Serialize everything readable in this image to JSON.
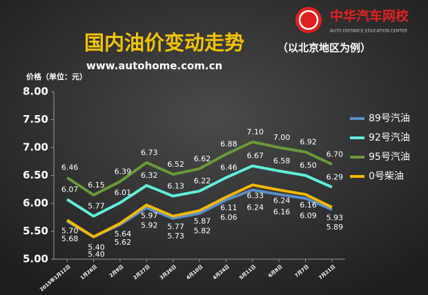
{
  "logo": {
    "name": "中华汽车网校",
    "tagline": "AUTO DISTANCE EDUCATION CENTER"
  },
  "chart_data": {
    "type": "line",
    "title": "国内油价变动走势",
    "subtitle": "（以北京地区为例）",
    "source": "www.autohome.com.cn",
    "y_label": "价格（单位：元）",
    "categories": [
      "2015年1月12日",
      "1月26日",
      "2月9日",
      "2月27日",
      "3月26日",
      "4月10日",
      "4月24日",
      "5月11日",
      "6月8日",
      "7月7日",
      "7月21日"
    ],
    "ylim": [
      5,
      8
    ],
    "yticks": [
      {
        "value": 5,
        "label": "5.00"
      },
      {
        "value": 5.5,
        "label": "5.50"
      },
      {
        "value": 6,
        "label": "6.00"
      },
      {
        "value": 6.5,
        "label": "6.50"
      },
      {
        "value": 7,
        "label": "7.00"
      },
      {
        "value": 7.5,
        "label": "7.50"
      },
      {
        "value": 8,
        "label": "8.00"
      }
    ],
    "grid": false,
    "legend": "right",
    "series": [
      {
        "name": "89号汽油",
        "color": "#5b8fc9",
        "values": [
          5.68,
          5.4,
          5.62,
          5.92,
          5.73,
          5.82,
          6.06,
          6.24,
          6.16,
          6.09,
          5.89
        ],
        "value_labels": [
          "5.68",
          "5.40",
          "5.62",
          "5.92",
          "5.73",
          "5.82",
          "6.06",
          "6.24",
          "6.16",
          "6.09",
          "5.89"
        ]
      },
      {
        "name": "92号汽油",
        "color": "#5ff0d8",
        "values": [
          6.07,
          5.77,
          6.01,
          6.32,
          6.13,
          6.22,
          6.46,
          6.67,
          6.58,
          6.5,
          6.29
        ],
        "value_labels": [
          "6.07",
          "5.77",
          "6.01",
          "6.32",
          "6.13",
          "6.22",
          "6.46",
          "6.67",
          "6.58",
          "6.50",
          "6.29"
        ]
      },
      {
        "name": "95号汽油",
        "color": "#6a9a3a",
        "values": [
          6.46,
          6.15,
          6.39,
          6.73,
          6.52,
          6.62,
          6.88,
          7.1,
          7.0,
          6.92,
          6.7
        ],
        "value_labels": [
          "6.46",
          "6.15",
          "6.39",
          "6.73",
          "6.52",
          "6.62",
          "6.88",
          "7.10",
          "7.00",
          "6.92",
          "6.70"
        ]
      },
      {
        "name": "0号柴油",
        "color": "#f5b800",
        "values": [
          5.7,
          5.4,
          5.64,
          5.97,
          5.77,
          5.87,
          6.11,
          6.33,
          6.24,
          6.16,
          5.93
        ],
        "value_labels": [
          "5.70",
          "5.40",
          "5.64",
          "5.97",
          "5.77",
          "5.87",
          "6.11",
          "6.33",
          "6.24",
          "6.16",
          "5.93"
        ]
      }
    ]
  }
}
